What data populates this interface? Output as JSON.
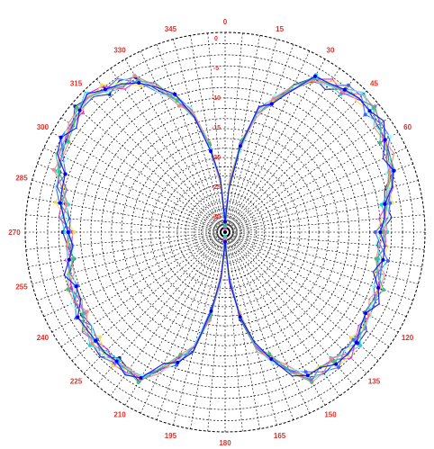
{
  "chart_data": {
    "type": "polar-line",
    "title": "",
    "angle_unit": "degrees",
    "angle_zero": "top",
    "angle_direction": "clockwise",
    "grid": true,
    "grid_style": "dashed",
    "angular_tick_labels": [
      {
        "angle": 0,
        "label": "0"
      },
      {
        "angle": 15,
        "label": "15"
      },
      {
        "angle": 30,
        "label": "30"
      },
      {
        "angle": 45,
        "label": "45"
      },
      {
        "angle": 60,
        "label": "60"
      },
      {
        "angle": 120,
        "label": "120"
      },
      {
        "angle": 135,
        "label": "135"
      },
      {
        "angle": 150,
        "label": "150"
      },
      {
        "angle": 165,
        "label": "165"
      },
      {
        "angle": 180,
        "label": "180"
      },
      {
        "angle": 195,
        "label": "195"
      },
      {
        "angle": 210,
        "label": "210"
      },
      {
        "angle": 225,
        "label": "225"
      },
      {
        "angle": 240,
        "label": "240"
      },
      {
        "angle": 255,
        "label": "255"
      },
      {
        "angle": 270,
        "label": "270"
      },
      {
        "angle": 285,
        "label": "285"
      },
      {
        "angle": 300,
        "label": "300"
      },
      {
        "angle": 315,
        "label": "315"
      },
      {
        "angle": 330,
        "label": "330"
      },
      {
        "angle": 345,
        "label": "345"
      }
    ],
    "radial_ring_labels": [
      "-30",
      "-25",
      "-20",
      "-15",
      "-10",
      "-5",
      "0"
    ],
    "series_colors": [
      "#1a1aa0",
      "#20d0e0",
      "#e020e0",
      "#f0e040",
      "#4060ff",
      "#a0ffff",
      "#ff8080",
      "#40c080",
      "#0000ff"
    ],
    "pattern_angles": [
      0,
      15,
      30,
      45,
      60,
      75,
      90,
      105,
      120,
      135,
      150,
      165,
      180,
      195,
      210,
      225,
      240,
      255,
      270,
      285,
      300,
      315,
      330,
      345
    ],
    "pattern_levels": [
      0.05,
      0.62,
      0.88,
      0.96,
      0.93,
      0.85,
      0.78,
      0.8,
      0.83,
      0.86,
      0.84,
      0.6,
      0.05,
      0.6,
      0.84,
      0.86,
      0.83,
      0.8,
      0.78,
      0.85,
      0.93,
      0.96,
      0.88,
      0.62
    ],
    "series_count": 9
  }
}
